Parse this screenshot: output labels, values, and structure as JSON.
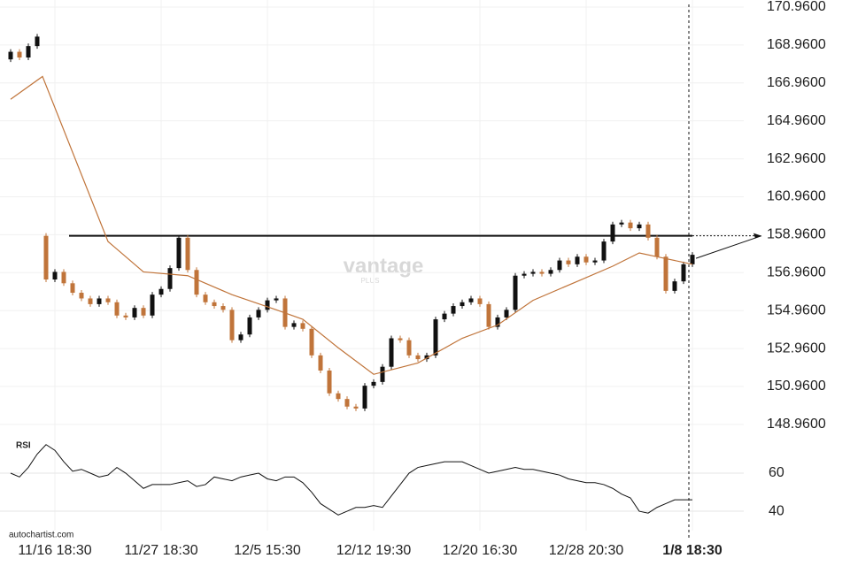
{
  "chart_data": [
    {
      "type": "candlestick",
      "open": [
        168.2,
        168.6,
        168.3,
        168.9,
        158.9,
        156.6,
        157.0,
        156.4,
        155.9,
        155.6,
        155.3,
        155.6,
        155.4,
        154.7,
        154.6,
        155.1,
        154.7,
        155.8,
        156.1,
        157.2,
        158.8,
        157.1,
        155.8,
        155.4,
        155.2,
        155.0,
        153.4,
        153.7,
        154.6,
        155.0,
        155.5,
        155.6,
        154.1,
        154.3,
        154.0,
        152.6,
        151.8,
        150.6,
        150.3,
        149.9,
        149.8,
        151.0,
        151.2,
        152.0,
        153.5,
        153.4,
        152.6,
        152.4,
        152.6,
        154.5,
        154.8,
        155.2,
        155.4,
        155.6,
        155.3,
        154.1,
        154.6,
        155.0,
        156.8,
        156.9,
        157.0,
        156.9,
        157.1,
        157.6,
        157.4,
        157.8,
        157.5,
        157.6,
        158.6,
        159.5,
        159.6,
        159.3,
        159.5,
        158.8,
        157.8,
        156.0,
        156.5,
        157.4
      ],
      "close": [
        168.6,
        168.3,
        168.9,
        169.4,
        156.6,
        157.0,
        156.4,
        155.9,
        155.6,
        155.3,
        155.6,
        155.4,
        154.7,
        154.6,
        155.1,
        154.7,
        155.8,
        156.1,
        157.2,
        158.8,
        157.1,
        155.8,
        155.4,
        155.2,
        155.0,
        153.4,
        153.7,
        154.6,
        155.0,
        155.5,
        155.6,
        154.1,
        154.3,
        154.0,
        152.6,
        151.8,
        150.6,
        150.3,
        149.9,
        149.8,
        151.0,
        151.2,
        152.0,
        153.5,
        153.4,
        152.6,
        152.4,
        152.6,
        154.5,
        154.8,
        155.2,
        155.4,
        155.6,
        155.3,
        154.1,
        154.6,
        155.0,
        156.8,
        156.9,
        157.0,
        156.9,
        157.1,
        157.6,
        157.4,
        157.8,
        157.5,
        157.6,
        158.6,
        159.5,
        159.6,
        159.3,
        159.5,
        158.8,
        157.8,
        156.0,
        156.5,
        157.4,
        157.9
      ],
      "up_color": "#111111",
      "down_color": "#c0743a",
      "ma": {
        "color": "#c0743a",
        "x": [
          0,
          3.6,
          11,
          15,
          20,
          25,
          30,
          33,
          37,
          41,
          46,
          51,
          55,
          59,
          64,
          68,
          71,
          74,
          77
        ],
        "values": [
          166.1,
          167.3,
          158.6,
          157.0,
          156.8,
          155.8,
          155.0,
          154.5,
          153.0,
          151.6,
          152.2,
          153.5,
          154.2,
          155.5,
          156.5,
          157.3,
          158.0,
          157.7,
          157.4
        ]
      },
      "resistance": 158.9,
      "ylim": [
        148.49,
        171.33
      ],
      "yticks": [
        {
          "value": 170.96,
          "label": "170.9600"
        },
        {
          "value": 168.96,
          "label": "168.9600"
        },
        {
          "value": 166.96,
          "label": "166.9600"
        },
        {
          "value": 164.96,
          "label": "164.9600"
        },
        {
          "value": 162.96,
          "label": "162.9600"
        },
        {
          "value": 160.96,
          "label": "160.9600"
        },
        {
          "value": 158.96,
          "label": "158.9600"
        },
        {
          "value": 156.96,
          "label": "156.9600"
        },
        {
          "value": 154.96,
          "label": "154.9600"
        },
        {
          "value": 152.96,
          "label": "152.9600"
        },
        {
          "value": 150.96,
          "label": "150.9600"
        },
        {
          "value": 148.96,
          "label": "148.9600"
        }
      ],
      "xticks": [
        {
          "value": 5,
          "label": "11/16 18:30"
        },
        {
          "value": 17,
          "label": "11/27 18:30"
        },
        {
          "value": 29,
          "label": "12/5 15:30"
        },
        {
          "value": 41,
          "label": "12/12 19:30"
        },
        {
          "value": 53,
          "label": "12/20 16:30"
        },
        {
          "value": 65,
          "label": "12/28 20:30"
        },
        {
          "value": 77,
          "label": "1/8 18:30"
        }
      ],
      "watermark": "vantage",
      "watermark_sub": "PLUS",
      "source": "autochartist.com",
      "grid": true
    },
    {
      "type": "line",
      "title": "RSI",
      "color": "#111111",
      "values": [
        60,
        58,
        63,
        70,
        75,
        72,
        66,
        61,
        62,
        60,
        58,
        59,
        63,
        60,
        56,
        52,
        54,
        54,
        54,
        55,
        56,
        53,
        54,
        58,
        57,
        56,
        58,
        59,
        60,
        57,
        56,
        58,
        58,
        55,
        50,
        44,
        41,
        38,
        40,
        42,
        42,
        43,
        42,
        48,
        54,
        60,
        63,
        64,
        65,
        66,
        66,
        66,
        64,
        62,
        60,
        61,
        62,
        63,
        62,
        62,
        61,
        60,
        59,
        57,
        56,
        55,
        55,
        54,
        52,
        49,
        47,
        40,
        39,
        42,
        44,
        46,
        46,
        46
      ],
      "ylim": [
        29.8,
        78.6
      ],
      "yticks": [
        60,
        40
      ],
      "grid": true
    }
  ]
}
